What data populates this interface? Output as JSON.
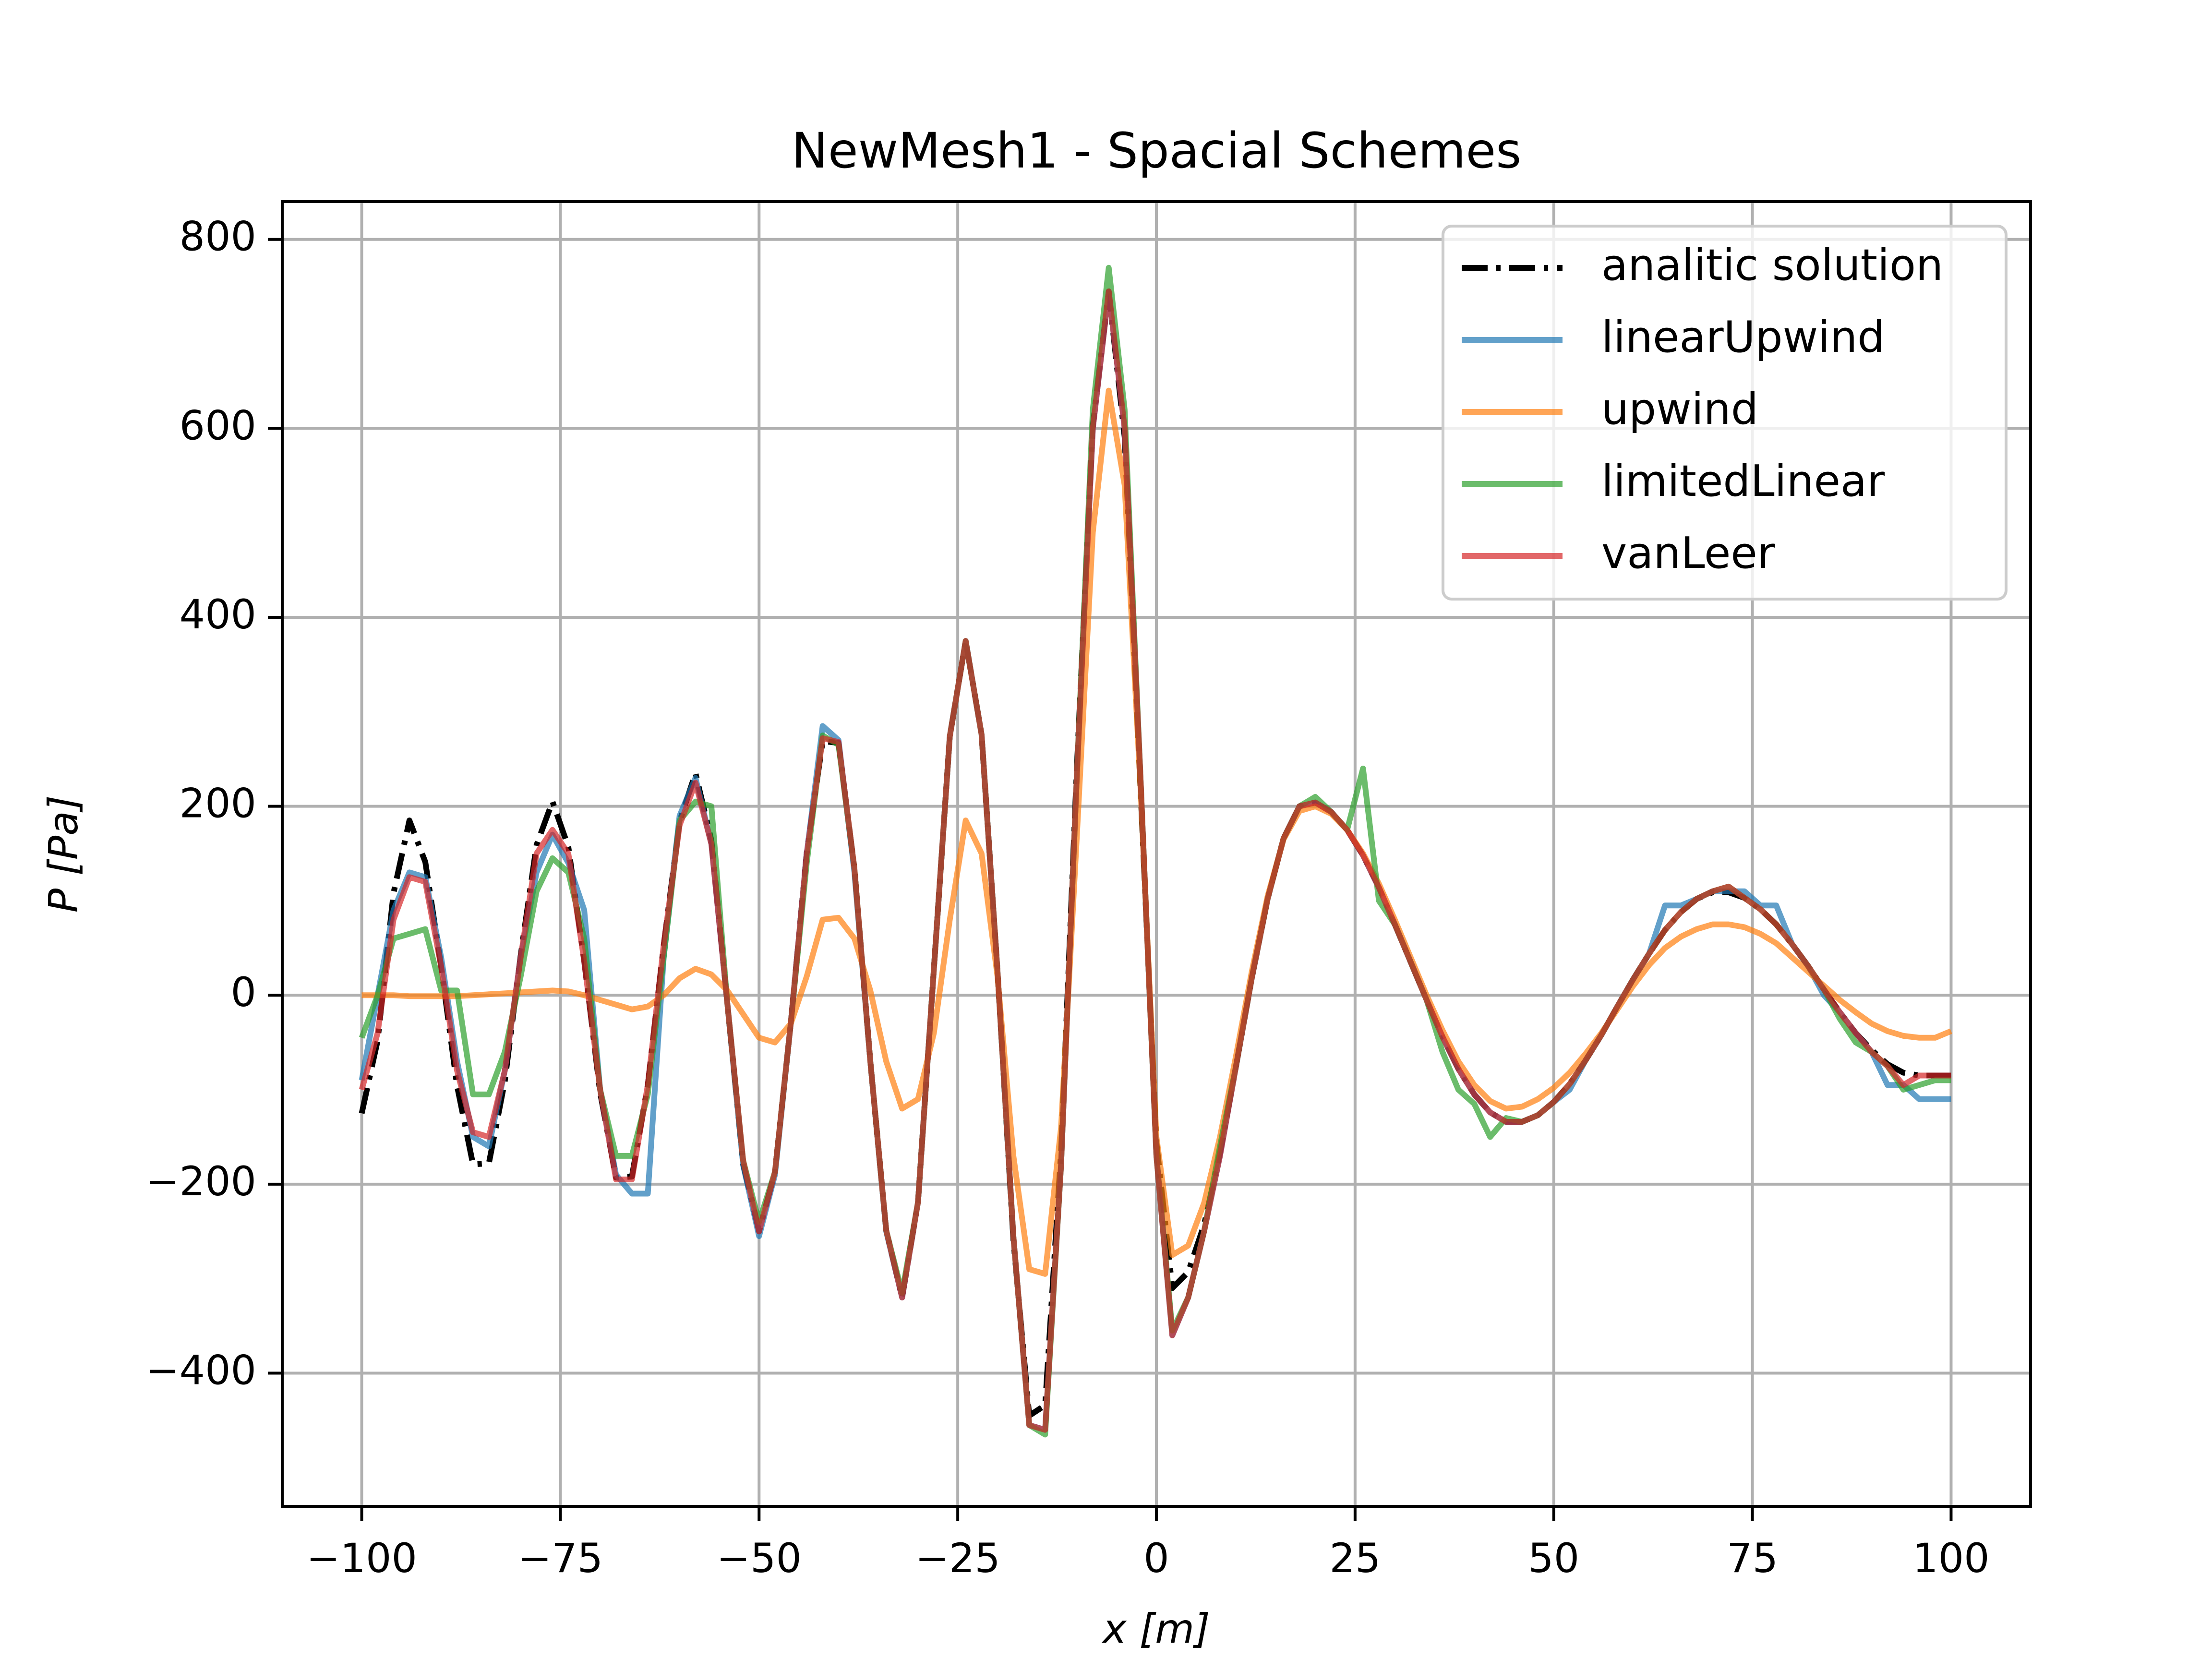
{
  "chart_data": {
    "type": "line",
    "title": "NewMesh1 - Spacial Schemes",
    "xlabel": "x [m]",
    "ylabel": "P [Pa]",
    "x": [
      -100,
      -98,
      -96,
      -94,
      -92,
      -90,
      -88,
      -86,
      -84,
      -82,
      -80,
      -78,
      -76,
      -74,
      -72,
      -70,
      -68,
      -66,
      -64,
      -62,
      -60,
      -58,
      -56,
      -54,
      -52,
      -50,
      -48,
      -46,
      -44,
      -42,
      -40,
      -38,
      -36,
      -34,
      -32,
      -30,
      -28,
      -26,
      -24,
      -22,
      -20,
      -18,
      -16,
      -14,
      -12,
      -10,
      -8,
      -6,
      -4,
      -2,
      0,
      2,
      4,
      6,
      8,
      10,
      12,
      14,
      16,
      18,
      20,
      22,
      24,
      26,
      28,
      30,
      32,
      34,
      36,
      38,
      40,
      42,
      44,
      46,
      48,
      50,
      52,
      54,
      56,
      58,
      60,
      62,
      64,
      66,
      68,
      70,
      72,
      74,
      76,
      78,
      80,
      82,
      84,
      86,
      88,
      90,
      92,
      94,
      96,
      98,
      100
    ],
    "series": [
      {
        "name": "analitic solution",
        "color": "#000000",
        "linestyle": "dashdot",
        "opacity": 1,
        "values": [
          -125,
          -48,
          108,
          185,
          141,
          30,
          -96,
          -179,
          -178,
          -91,
          42,
          159,
          205,
          157,
          36,
          -103,
          -193,
          -192,
          -95,
          53,
          184,
          235,
          164,
          -8,
          -179,
          -250,
          -187,
          -29,
          151,
          269,
          267,
          134,
          -70,
          -249,
          -320,
          -219,
          28,
          274,
          375,
          276,
          26,
          -259,
          -445,
          -434,
          -166,
          243,
          603,
          745,
          591,
          218,
          -156,
          -310,
          -293,
          -243,
          -167,
          -76,
          18,
          102,
          166,
          200,
          204,
          194,
          175,
          148,
          114,
          75,
          35,
          -5,
          -44,
          -78,
          -105,
          -124,
          -134,
          -134,
          -127,
          -113,
          -94,
          -69,
          -42,
          -12,
          17,
          44,
          69,
          88,
          102,
          109,
          109,
          103,
          91,
          75,
          54,
          31,
          6,
          -18,
          -40,
          -58,
          -73,
          -82,
          -85,
          -85,
          -85
        ]
      },
      {
        "name": "linearUpwind",
        "color": "#1f77b4",
        "linestyle": "solid",
        "opacity": 0.7,
        "values": [
          -90,
          0,
          90,
          130,
          125,
          40,
          -70,
          -150,
          -160,
          -80,
          40,
          130,
          170,
          140,
          90,
          -100,
          -190,
          -210,
          -210,
          40,
          190,
          230,
          160,
          -8,
          -180,
          -255,
          -190,
          -29,
          150,
          285,
          270,
          130,
          -70,
          -250,
          -320,
          -219,
          28,
          274,
          375,
          276,
          26,
          -255,
          -455,
          -460,
          -180,
          235,
          600,
          745,
          600,
          230,
          -170,
          -360,
          -320,
          -250,
          -170,
          -76,
          18,
          102,
          166,
          200,
          204,
          194,
          175,
          148,
          114,
          75,
          35,
          -5,
          -44,
          -78,
          -105,
          -124,
          -134,
          -134,
          -127,
          -113,
          -100,
          -69,
          -42,
          -12,
          17,
          44,
          95,
          95,
          102,
          110,
          110,
          110,
          95,
          95,
          54,
          31,
          0,
          -18,
          -40,
          -60,
          -95,
          -95,
          -110,
          -110,
          -110
        ]
      },
      {
        "name": "upwind",
        "color": "#ff7f0e",
        "linestyle": "solid",
        "opacity": 0.7,
        "values": [
          0,
          0,
          0,
          -1,
          -1,
          -1,
          -1,
          0,
          1,
          2,
          3,
          4,
          5,
          4,
          0,
          -5,
          -10,
          -15,
          -12,
          0,
          18,
          28,
          22,
          5,
          -20,
          -45,
          -50,
          -30,
          20,
          80,
          82,
          60,
          5,
          -70,
          -120,
          -110,
          -40,
          80,
          185,
          150,
          20,
          -170,
          -290,
          -295,
          -140,
          170,
          490,
          640,
          540,
          220,
          -150,
          -275,
          -265,
          -220,
          -150,
          -65,
          25,
          105,
          165,
          195,
          200,
          192,
          175,
          150,
          118,
          80,
          40,
          0,
          -37,
          -70,
          -95,
          -112,
          -120,
          -118,
          -110,
          -98,
          -82,
          -62,
          -40,
          -15,
          10,
          32,
          50,
          62,
          70,
          75,
          75,
          72,
          65,
          55,
          40,
          25,
          10,
          -5,
          -18,
          -30,
          -38,
          -43,
          -45,
          -45,
          -38
        ]
      },
      {
        "name": "limitedLinear",
        "color": "#2ca02c",
        "linestyle": "solid",
        "opacity": 0.7,
        "values": [
          -45,
          0,
          60,
          65,
          70,
          5,
          5,
          -105,
          -105,
          -60,
          20,
          110,
          145,
          130,
          60,
          -100,
          -170,
          -170,
          -105,
          40,
          185,
          205,
          200,
          -8,
          -175,
          -240,
          -187,
          -29,
          140,
          275,
          265,
          134,
          -70,
          -249,
          -315,
          -219,
          28,
          274,
          375,
          276,
          26,
          -255,
          -455,
          -465,
          -180,
          235,
          620,
          770,
          620,
          230,
          -170,
          -355,
          -320,
          -250,
          -160,
          -76,
          18,
          102,
          166,
          200,
          210,
          194,
          175,
          240,
          100,
          75,
          35,
          -5,
          -60,
          -100,
          -115,
          -150,
          -130,
          -134,
          -127,
          -113,
          -94,
          -69,
          -42,
          -12,
          17,
          44,
          69,
          88,
          102,
          110,
          115,
          103,
          91,
          75,
          54,
          31,
          6,
          -25,
          -50,
          -60,
          -75,
          -100,
          -95,
          -90,
          -90
        ]
      },
      {
        "name": "vanLeer",
        "color": "#d62728",
        "linestyle": "solid",
        "opacity": 0.7,
        "values": [
          -100,
          -40,
          80,
          125,
          120,
          30,
          -80,
          -145,
          -150,
          -80,
          40,
          150,
          175,
          150,
          36,
          -100,
          -195,
          -195,
          -95,
          53,
          180,
          225,
          160,
          -8,
          -175,
          -250,
          -187,
          -29,
          150,
          272,
          268,
          134,
          -70,
          -249,
          -320,
          -219,
          28,
          274,
          375,
          276,
          26,
          -255,
          -455,
          -460,
          -180,
          235,
          600,
          745,
          600,
          230,
          -170,
          -360,
          -320,
          -250,
          -170,
          -76,
          18,
          102,
          166,
          200,
          204,
          194,
          175,
          148,
          114,
          75,
          35,
          -5,
          -44,
          -78,
          -105,
          -124,
          -134,
          -134,
          -127,
          -113,
          -94,
          -69,
          -42,
          -12,
          17,
          44,
          69,
          88,
          102,
          110,
          115,
          103,
          91,
          75,
          54,
          31,
          6,
          -18,
          -40,
          -60,
          -75,
          -95,
          -85,
          -85,
          -85
        ]
      }
    ],
    "xlim": [
      -110,
      110
    ],
    "ylim": [
      -541,
      840
    ],
    "xticks": [
      {
        "value": -100,
        "label": "−100"
      },
      {
        "value": -75,
        "label": "−75"
      },
      {
        "value": -50,
        "label": "−50"
      },
      {
        "value": -25,
        "label": "−25"
      },
      0,
      25,
      50,
      75,
      100
    ],
    "yticks": [
      {
        "value": -400,
        "label": "−400"
      },
      {
        "value": -200,
        "label": "−200"
      },
      0,
      200,
      400,
      600,
      800
    ],
    "grid": true,
    "legend": "upper right"
  }
}
